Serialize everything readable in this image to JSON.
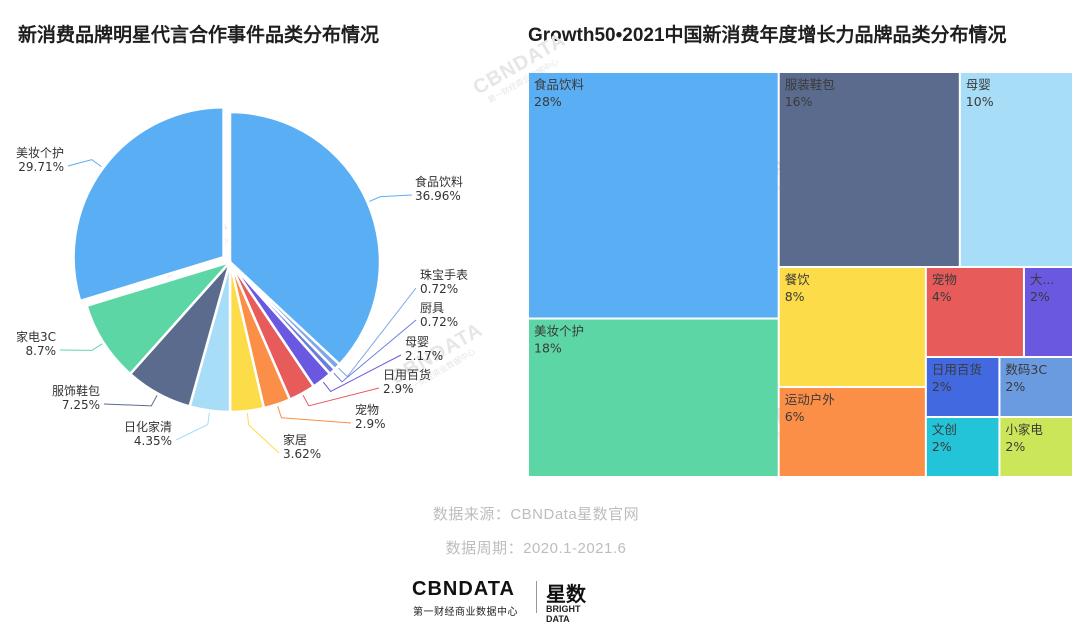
{
  "titles": {
    "left": "新消费品牌明星代言合作事件品类分布情况",
    "right": "Growth50•2021中国新消费年度增长力品牌品类分布情况"
  },
  "footer": {
    "source": "数据来源：CBNData星数官网",
    "period": "数据周期：2020.1-2021.6"
  },
  "logo": {
    "brand": "CBNDATA",
    "brand_sub": "第一财经商业数据中心",
    "brand2": "星数",
    "brand2_sub": "BRIGHT DATA"
  },
  "watermark": {
    "text": "CBNDATA",
    "sub": "第一财经商业数据中心"
  },
  "chart_data": [
    {
      "type": "pie",
      "title": "新消费品牌明星代言合作事件品类分布情况",
      "slices": [
        {
          "label": "食品饮料",
          "value": 36.96,
          "text": "36.96%",
          "color": "#5aaef4",
          "offset": false
        },
        {
          "label": "珠宝手表",
          "value": 0.72,
          "text": "0.72%",
          "color": "#7fa6e8",
          "offset": false
        },
        {
          "label": "厨具",
          "value": 0.72,
          "text": "0.72%",
          "color": "#6a7ce0",
          "offset": false
        },
        {
          "label": "母婴",
          "value": 2.17,
          "text": "2.17%",
          "color": "#6b58e0",
          "offset": false
        },
        {
          "label": "日用百货",
          "value": 2.9,
          "text": "2.9%",
          "color": "#e85b5b",
          "offset": false
        },
        {
          "label": "宠物",
          "value": 2.9,
          "text": "2.9%",
          "color": "#fb8f48",
          "offset": false
        },
        {
          "label": "家居",
          "value": 3.62,
          "text": "3.62%",
          "color": "#fddc4a",
          "offset": false
        },
        {
          "label": "日化家清",
          "value": 4.35,
          "text": "4.35%",
          "color": "#a8ddf8",
          "offset": false
        },
        {
          "label": "服饰鞋包",
          "value": 7.25,
          "text": "7.25%",
          "color": "#5a6b8e",
          "offset": false
        },
        {
          "label": "家电3C",
          "value": 8.7,
          "text": "8.7%",
          "color": "#5cd6a4",
          "offset": false
        },
        {
          "label": "美妆个护",
          "value": 29.71,
          "text": "29.71%",
          "color": "#5aaef4",
          "offset": true
        }
      ]
    },
    {
      "type": "treemap",
      "title": "Growth50•2021中国新消费年度增长力品牌品类分布情况",
      "cells": [
        {
          "label": "食品饮料",
          "value": 28,
          "text": "28%",
          "color": "#5aaef4"
        },
        {
          "label": "美妆个护",
          "value": 18,
          "text": "18%",
          "color": "#5cd6a4"
        },
        {
          "label": "服装鞋包",
          "value": 16,
          "text": "16%",
          "color": "#5a6b8e"
        },
        {
          "label": "母婴",
          "value": 10,
          "text": "10%",
          "color": "#a8ddf8"
        },
        {
          "label": "餐饮",
          "value": 8,
          "text": "8%",
          "color": "#fddc4a"
        },
        {
          "label": "运动户外",
          "value": 6,
          "text": "6%",
          "color": "#fb8f48"
        },
        {
          "label": "宠物",
          "value": 4,
          "text": "4%",
          "color": "#e85b5b"
        },
        {
          "label": "大...",
          "value": 2,
          "text": "2%",
          "color": "#6b58e0"
        },
        {
          "label": "日用百货",
          "value": 2,
          "text": "2%",
          "color": "#4269e0"
        },
        {
          "label": "文创",
          "value": 2,
          "text": "2%",
          "color": "#23c3d8"
        },
        {
          "label": "数码3C",
          "value": 2,
          "text": "2%",
          "color": "#6a9ae0"
        },
        {
          "label": "小家电",
          "value": 2,
          "text": "2%",
          "color": "#cce65a"
        }
      ]
    }
  ]
}
